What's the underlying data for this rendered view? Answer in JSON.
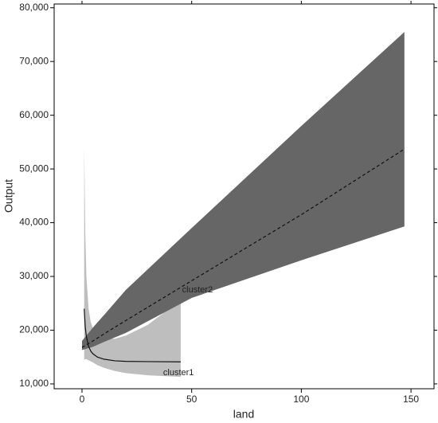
{
  "chart_data": {
    "type": "line",
    "x_label": "land",
    "y_label": "Output",
    "xlim": [
      -12.7,
      160.5
    ],
    "ylim": [
      9100,
      80700
    ],
    "xticks": [
      0,
      50,
      100,
      150
    ],
    "yticks": [
      {
        "value": 10000,
        "label": "10,000"
      },
      {
        "value": 20000,
        "label": "20,000"
      },
      {
        "value": 30000,
        "label": "30,000"
      },
      {
        "value": 40000,
        "label": "40,000"
      },
      {
        "value": 50000,
        "label": "50,000"
      },
      {
        "value": 60000,
        "label": "60,000"
      },
      {
        "value": 70000,
        "label": "70,000"
      },
      {
        "value": 80000,
        "label": "80,000"
      }
    ],
    "series": [
      {
        "name": "cluster1",
        "color": "#111111",
        "band_color": "#bebebe",
        "dashed": false,
        "x": [
          1,
          1.5,
          2,
          3,
          4,
          5,
          7,
          10,
          15,
          20,
          30,
          45
        ],
        "values": [
          24000,
          20500,
          18800,
          17000,
          16100,
          15600,
          15000,
          14600,
          14300,
          14200,
          14150,
          14100
        ],
        "upper": [
          54000,
          38000,
          30000,
          24000,
          21500,
          20300,
          19200,
          18500,
          18400,
          19000,
          21000,
          25600
        ],
        "lower": [
          14500,
          14600,
          14600,
          14400,
          14200,
          14000,
          13500,
          13000,
          12400,
          12000,
          11600,
          11300
        ]
      },
      {
        "name": "cluster2",
        "color": "#111111",
        "band_color": "#666666",
        "dashed": true,
        "x": [
          0,
          5,
          10,
          20,
          50,
          100,
          147
        ],
        "values": [
          16800,
          18000,
          19300,
          21800,
          29200,
          41500,
          53700
        ],
        "upper": [
          18000,
          20500,
          22800,
          27500,
          39000,
          58000,
          75500
        ],
        "lower": [
          16300,
          16900,
          17800,
          19500,
          26000,
          33000,
          39300
        ]
      }
    ]
  }
}
